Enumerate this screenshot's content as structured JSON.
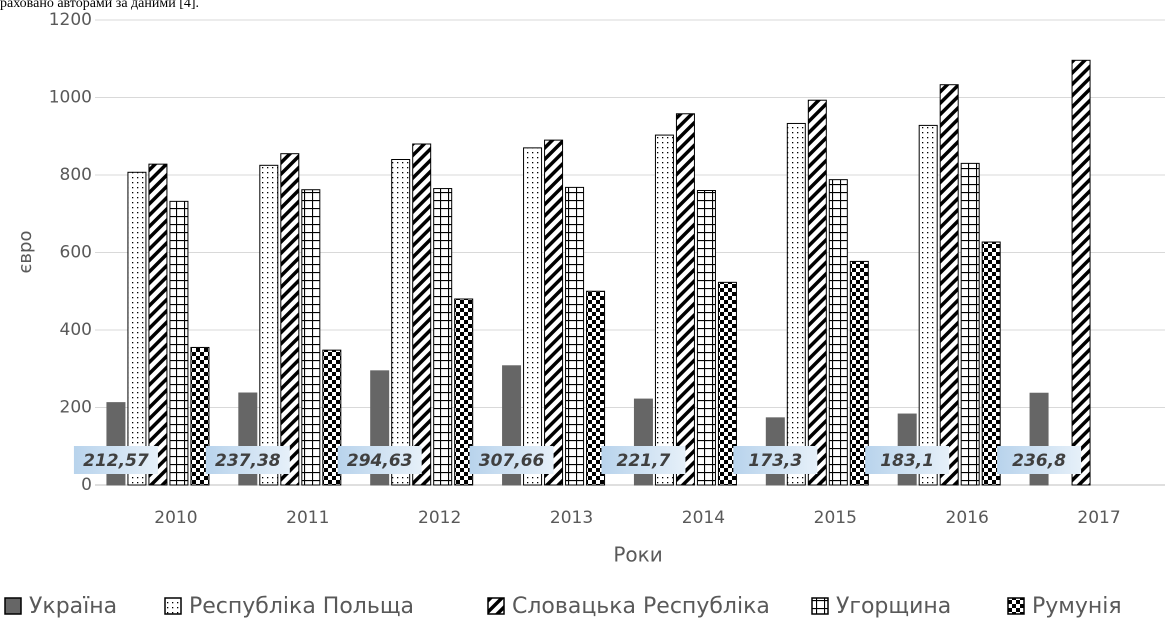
{
  "chart_data": {
    "type": "bar",
    "note": "раховано авторами за даними [4].",
    "ylabel": "євро",
    "xlabel": "Роки",
    "categories": [
      "2010",
      "2011",
      "2012",
      "2013",
      "2014",
      "2015",
      "2016",
      "2017"
    ],
    "series": [
      {
        "name": "Україна",
        "color": "#666666",
        "pattern": "solid",
        "values": [
          212.57,
          237.38,
          294.63,
          307.66,
          221.7,
          173.3,
          183.1,
          236.8
        ],
        "value_labels": [
          "212,57",
          "237,38",
          "294,63",
          "307,66",
          "221,7",
          "173,3",
          "183,1",
          "236,8"
        ]
      },
      {
        "name": "Республіка Польща",
        "color": "#000000",
        "pattern": "dots",
        "values": [
          807,
          825,
          840,
          870,
          903,
          933,
          928,
          null
        ]
      },
      {
        "name": "Словацька Республіка",
        "color": "#000000",
        "pattern": "diagonal",
        "values": [
          828,
          855,
          880,
          890,
          958,
          993,
          1033,
          1096
        ]
      },
      {
        "name": "Угорщина",
        "color": "#000000",
        "pattern": "grid",
        "values": [
          732,
          762,
          765,
          768,
          760,
          788,
          830,
          null
        ]
      },
      {
        "name": "Румунія",
        "color": "#000000",
        "pattern": "checker",
        "values": [
          355,
          348,
          480,
          500,
          523,
          577,
          627,
          null
        ]
      }
    ],
    "ylim": [
      0,
      1200
    ],
    "yticks": [
      0,
      200,
      400,
      600,
      800,
      1000,
      1200
    ],
    "grid": true
  }
}
